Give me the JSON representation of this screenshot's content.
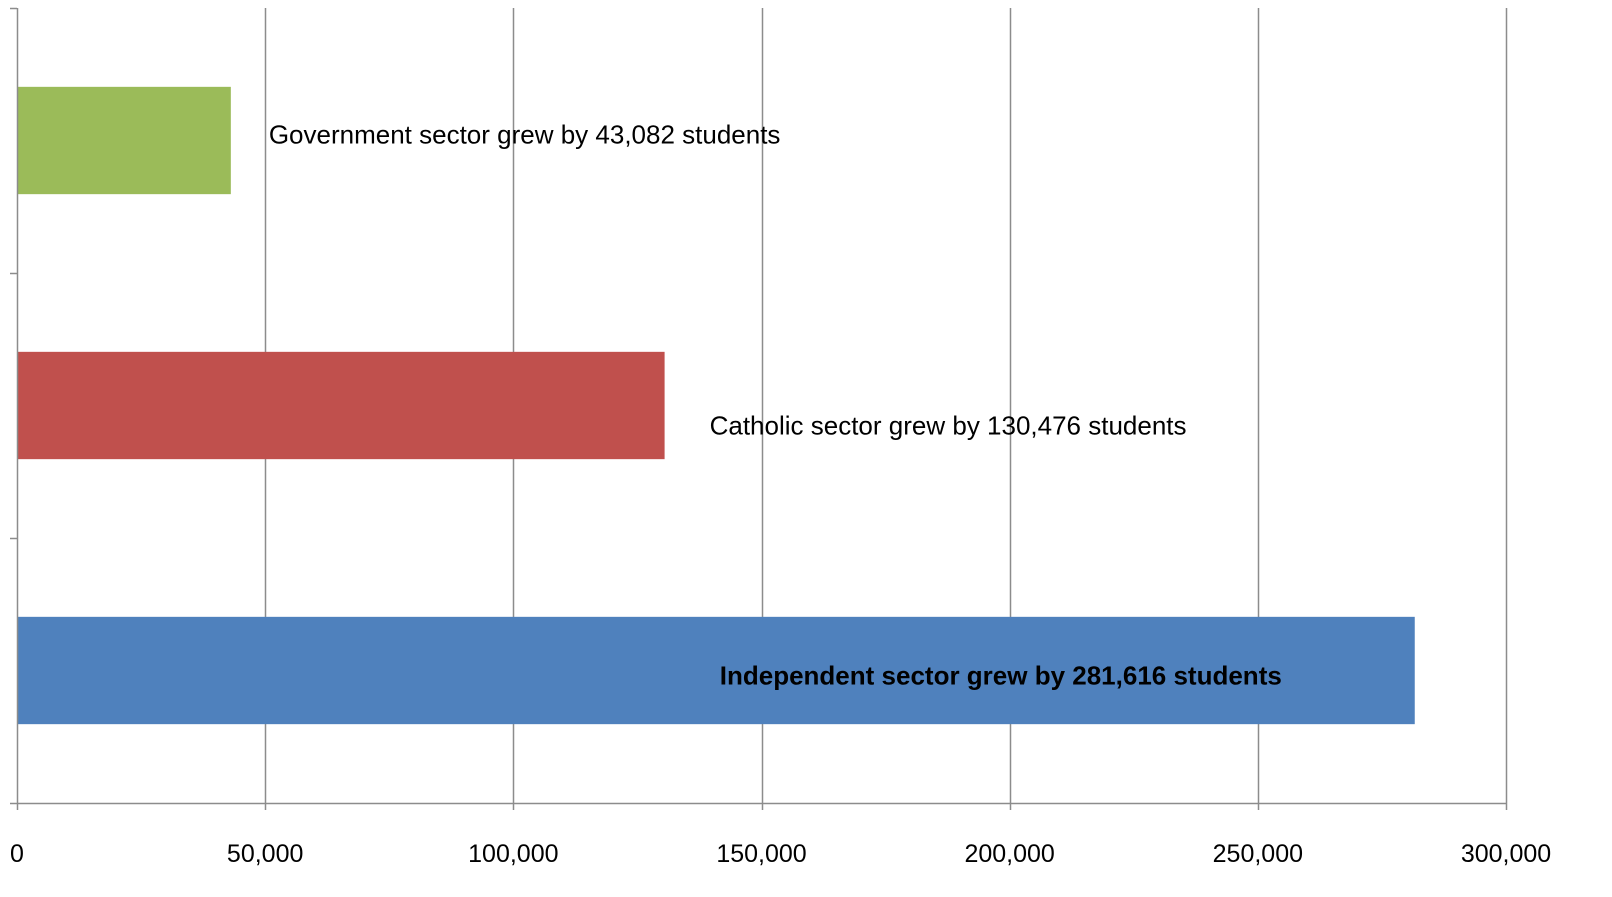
{
  "chart_data": {
    "type": "bar",
    "orientation": "horizontal",
    "categories": [
      "Government",
      "Catholic",
      "Independent"
    ],
    "values": [
      43082,
      130476,
      281616
    ],
    "colors": [
      "#9BBB59",
      "#C0504D",
      "#4F81BD"
    ],
    "data_labels": [
      "Government  sector grew by 43,082 students",
      "Catholic sector grew by 130,476 students",
      "Independent sector grew by 281,616 students"
    ],
    "data_label_bold": [
      false,
      false,
      true
    ],
    "xlim": [
      0,
      300000
    ],
    "x_ticks": [
      0,
      50000,
      100000,
      150000,
      200000,
      250000,
      300000
    ],
    "x_tick_labels": [
      "0",
      "50,000",
      "100,000",
      "150,000",
      "200,000",
      "250,000",
      "300,000"
    ],
    "grid": true,
    "legend": "none",
    "title": "",
    "xlabel": "",
    "ylabel": ""
  }
}
